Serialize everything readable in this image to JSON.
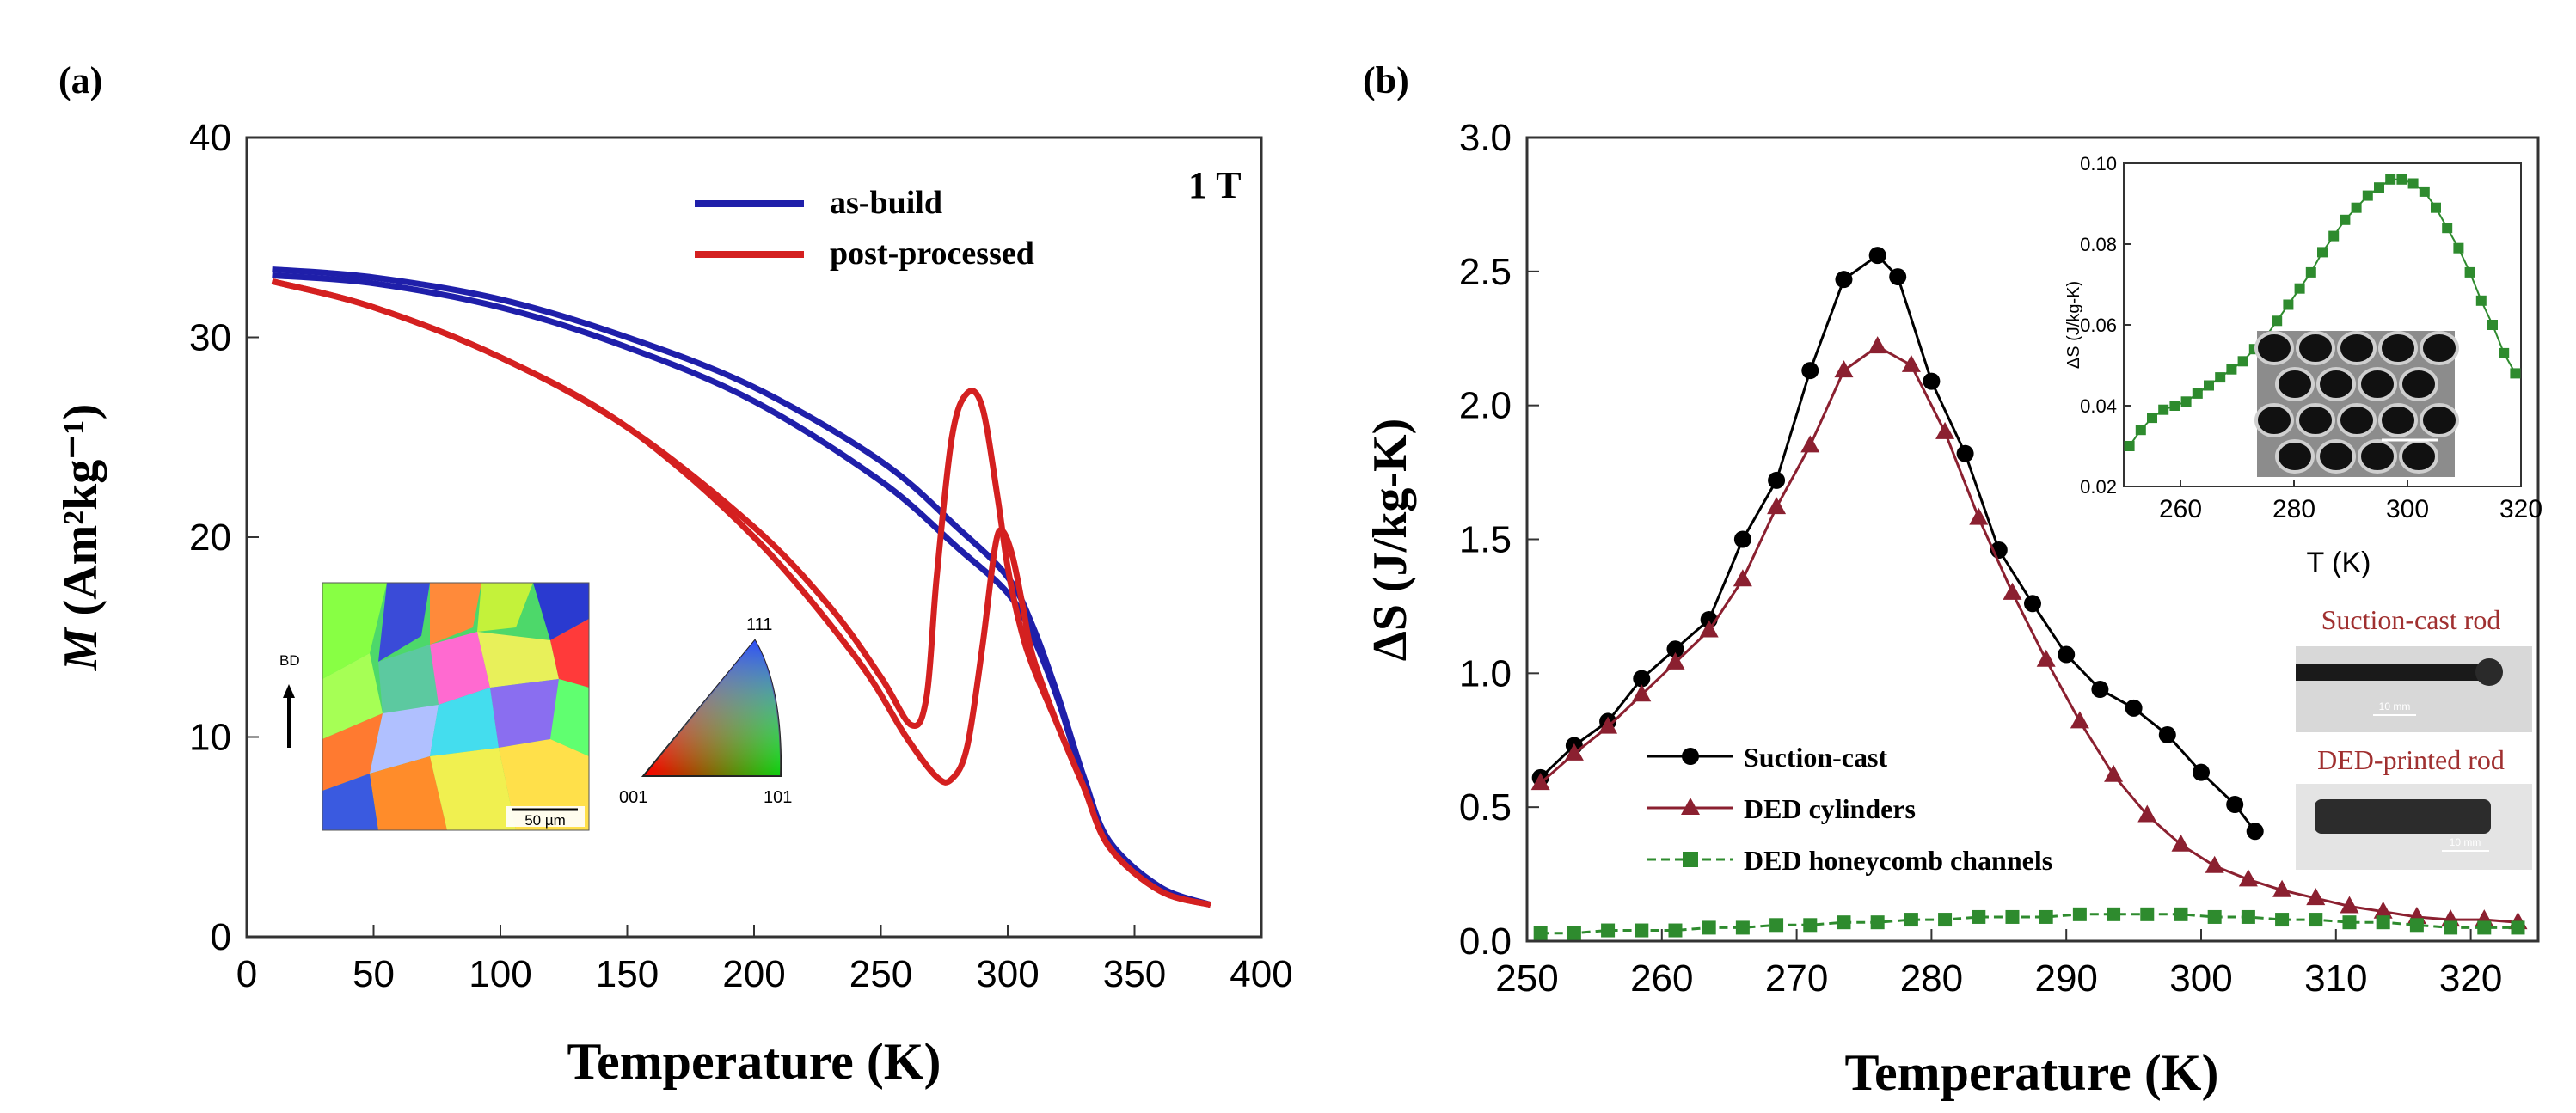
{
  "chart_data": [
    {
      "panel": "(a)",
      "type": "line",
      "annotation": "1 T",
      "xlabel": "Temperature (K)",
      "ylabel_italic": "M",
      "ylabel_rest": " (Am²kg⁻¹)",
      "xlim": [
        0,
        400
      ],
      "ylim": [
        0,
        40
      ],
      "xticks": [
        0,
        50,
        100,
        150,
        200,
        250,
        300,
        350,
        400
      ],
      "yticks": [
        0,
        10,
        20,
        30,
        40
      ],
      "series": [
        {
          "name": "as-build",
          "color": "#1f1faa",
          "x": [
            10,
            50,
            100,
            150,
            200,
            250,
            280,
            300,
            310,
            320,
            330,
            340,
            360,
            380
          ],
          "y": [
            33.4,
            33.0,
            31.9,
            30.0,
            27.5,
            23.8,
            20.5,
            18.0,
            15.5,
            12.0,
            8.0,
            4.8,
            2.5,
            1.6
          ]
        },
        {
          "name": "as-build",
          "color": "#1f1faa",
          "x": [
            10,
            50,
            100,
            150,
            200,
            250,
            280,
            300,
            310,
            320,
            330,
            340,
            360,
            380
          ],
          "y": [
            33.1,
            32.7,
            31.5,
            29.5,
            26.8,
            22.8,
            19.5,
            17.2,
            15.0,
            11.8,
            7.8,
            4.6,
            2.4,
            1.6
          ]
        },
        {
          "name": "post-processed",
          "color": "#d42020",
          "x": [
            10,
            50,
            100,
            150,
            200,
            230,
            250,
            262,
            268,
            272,
            278,
            284,
            290,
            296,
            300,
            305,
            310,
            320,
            330,
            340,
            360,
            380
          ],
          "y": [
            32.8,
            31.5,
            29.0,
            25.5,
            20.5,
            16.5,
            13.0,
            10.6,
            12.0,
            18.0,
            25.0,
            27.2,
            26.5,
            22.0,
            18.5,
            15.5,
            13.5,
            10.5,
            7.5,
            4.5,
            2.3,
            1.6
          ]
        },
        {
          "name": "post-processed",
          "color": "#d42020",
          "x": [
            10,
            50,
            100,
            150,
            200,
            240,
            260,
            272,
            278,
            284,
            290,
            295,
            298,
            302,
            306,
            310,
            320,
            330,
            340,
            360,
            380
          ],
          "y": [
            32.8,
            31.5,
            29.0,
            25.5,
            20.0,
            14.0,
            10.0,
            8.0,
            7.9,
            9.5,
            14.5,
            19.5,
            20.3,
            19.0,
            16.5,
            14.0,
            10.5,
            7.5,
            4.5,
            2.3,
            1.6
          ]
        }
      ],
      "legend": [
        {
          "label": "as-build",
          "color": "#1f1faa"
        },
        {
          "label": "post-processed",
          "color": "#d42020"
        }
      ],
      "inset_map": {
        "direction_label": "BD",
        "scale_label": "50 µm"
      },
      "inset_triangle": {
        "top": "111",
        "left": "001",
        "right": "101"
      }
    },
    {
      "panel": "(b)",
      "type": "line",
      "xlabel": "Temperature (K)",
      "ylabel": "ΔS (J/kg-K)",
      "xlim": [
        250,
        325
      ],
      "ylim": [
        0,
        3.0
      ],
      "xticks": [
        250,
        260,
        270,
        280,
        290,
        300,
        310,
        320
      ],
      "yticks": [
        0.0,
        0.5,
        1.0,
        1.5,
        2.0,
        2.5,
        3.0
      ],
      "series": [
        {
          "name": "Suction-cast",
          "color": "#000000",
          "marker": "circle",
          "x": [
            251,
            253.5,
            256,
            258.5,
            261,
            263.5,
            266,
            268.5,
            271,
            273.5,
            276,
            277.5,
            280,
            282.5,
            285,
            287.5,
            290,
            292.5,
            295,
            297.5,
            300,
            302.5,
            304
          ],
          "y": [
            0.61,
            0.73,
            0.82,
            0.98,
            1.09,
            1.2,
            1.5,
            1.72,
            2.13,
            2.47,
            2.56,
            2.48,
            2.09,
            1.82,
            1.46,
            1.26,
            1.07,
            0.94,
            0.87,
            0.77,
            0.63,
            0.51,
            0.41
          ]
        },
        {
          "name": "DED cylinders",
          "color": "#8b2030",
          "marker": "triangle",
          "x": [
            251,
            253.5,
            256,
            258.5,
            261,
            263.5,
            266,
            268.5,
            271,
            273.5,
            276,
            278.5,
            281,
            283.5,
            286,
            288.5,
            291,
            293.5,
            296,
            298.5,
            301,
            303.5,
            306,
            308.5,
            311,
            313.5,
            316,
            318.5,
            321,
            323.5
          ],
          "y": [
            0.59,
            0.7,
            0.8,
            0.92,
            1.04,
            1.16,
            1.35,
            1.62,
            1.85,
            2.13,
            2.22,
            2.15,
            1.9,
            1.58,
            1.3,
            1.05,
            0.82,
            0.62,
            0.47,
            0.36,
            0.28,
            0.23,
            0.19,
            0.16,
            0.13,
            0.11,
            0.09,
            0.08,
            0.08,
            0.07
          ]
        },
        {
          "name": "DED honeycomb channels",
          "color": "#2e8b2e",
          "marker": "square",
          "x": [
            251,
            253.5,
            256,
            258.5,
            261,
            263.5,
            266,
            268.5,
            271,
            273.5,
            276,
            278.5,
            281,
            283.5,
            286,
            288.5,
            291,
            293.5,
            296,
            298.5,
            301,
            303.5,
            306,
            308.5,
            311,
            313.5,
            316,
            318.5,
            321,
            323.5
          ],
          "y": [
            0.03,
            0.03,
            0.04,
            0.04,
            0.04,
            0.05,
            0.05,
            0.06,
            0.06,
            0.07,
            0.07,
            0.08,
            0.08,
            0.09,
            0.09,
            0.09,
            0.1,
            0.1,
            0.1,
            0.1,
            0.09,
            0.09,
            0.08,
            0.08,
            0.07,
            0.07,
            0.06,
            0.05,
            0.05,
            0.05
          ]
        }
      ],
      "legend": [
        {
          "label": "Suction-cast",
          "color": "#000000",
          "marker": "circle"
        },
        {
          "label": "DED cylinders",
          "color": "#8b2030",
          "marker": "triangle"
        },
        {
          "label": "DED honeycomb channels",
          "color": "#2e8b2e",
          "marker": "square"
        }
      ],
      "inset": {
        "xlabel": "T (K)",
        "ylabel": "ΔS (J/kg-K)",
        "xlim": [
          250,
          320
        ],
        "ylim": [
          0.02,
          0.1
        ],
        "xticks": [
          260,
          280,
          300,
          320
        ],
        "ytick_labels": [
          "0.02",
          "0.04",
          "0.06",
          "0.08",
          "0.10"
        ],
        "yticks": [
          0.02,
          0.04,
          0.06,
          0.08,
          0.1
        ],
        "series": {
          "name": "DED honeycomb channels",
          "color": "#2e8b2e",
          "x": [
            251,
            253,
            255,
            257,
            259,
            261,
            263,
            265,
            267,
            269,
            271,
            273,
            275,
            277,
            279,
            281,
            283,
            285,
            287,
            289,
            291,
            293,
            295,
            297,
            299,
            301,
            303,
            305,
            307,
            309,
            311,
            313,
            315,
            317,
            319
          ],
          "y": [
            0.03,
            0.034,
            0.037,
            0.039,
            0.04,
            0.041,
            0.043,
            0.045,
            0.047,
            0.049,
            0.051,
            0.054,
            0.057,
            0.061,
            0.065,
            0.069,
            0.073,
            0.078,
            0.082,
            0.086,
            0.089,
            0.092,
            0.094,
            0.096,
            0.096,
            0.095,
            0.093,
            0.089,
            0.084,
            0.079,
            0.073,
            0.066,
            0.06,
            0.053,
            0.048
          ]
        }
      },
      "photo_labels": [
        "Suction-cast rod",
        "DED-printed rod"
      ],
      "photo_scale_labels": [
        "10 mm",
        "10 mm"
      ]
    }
  ]
}
